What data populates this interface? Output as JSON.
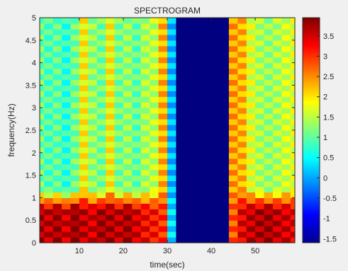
{
  "chart_data": {
    "type": "heatmap",
    "title": "SPECTROGRAM",
    "xlabel": "time(sec)",
    "ylabel": "frequency(Hz)",
    "xlim": [
      1,
      59
    ],
    "ylim": [
      0,
      5
    ],
    "xticks": [
      10,
      20,
      30,
      40,
      50
    ],
    "yticks": [
      0,
      0.5,
      1,
      1.5,
      2,
      2.5,
      3,
      3.5,
      4,
      4.5,
      5
    ],
    "colormap": "jet",
    "colorbar": {
      "range": [
        -1.6,
        3.95
      ],
      "ticks": [
        -1.5,
        -1,
        -0.5,
        0,
        0.5,
        1,
        1.5,
        2,
        2.5,
        3,
        3.5
      ]
    },
    "time_bins": [
      1,
      3,
      5,
      7,
      9,
      11,
      13,
      15,
      17,
      19,
      21,
      23,
      25,
      27,
      29,
      31,
      33,
      35,
      37,
      39,
      41,
      43,
      45,
      47,
      49,
      51,
      53,
      55,
      57,
      59
    ],
    "low_freq_band": {
      "range_hz": [
        0,
        0.75
      ],
      "power": [
        3.7,
        3.6,
        3.8,
        3.5,
        3.9,
        3.6,
        3.5,
        3.8,
        3.7,
        3.6,
        3.8,
        3.5,
        3.3,
        3.2,
        3.0,
        0.3,
        -1.6,
        -1.6,
        -1.6,
        -1.6,
        -1.6,
        -1.6,
        2.8,
        3.4,
        3.6,
        3.7,
        3.8,
        3.6,
        3.5,
        3.4
      ]
    },
    "high_freq_band": {
      "range_hz": [
        1.2,
        5
      ],
      "power": [
        1.1,
        0.9,
        1.0,
        0.7,
        1.1,
        1.9,
        1.3,
        1.1,
        1.9,
        1.1,
        1.3,
        1.0,
        1.4,
        1.5,
        2.3,
        0.1,
        -1.6,
        -1.6,
        -1.6,
        -1.6,
        -1.6,
        -1.6,
        2.4,
        2.3,
        1.7,
        1.4,
        1.3,
        1.4,
        1.6,
        1.7
      ]
    },
    "cell_power_hz_x_time": "low_freq_band below 0.75 Hz, high_freq_band above 1.2 Hz, linear blend between; alternating thin stripes about +/-0.25 around the band value across 0-5 Hz"
  }
}
